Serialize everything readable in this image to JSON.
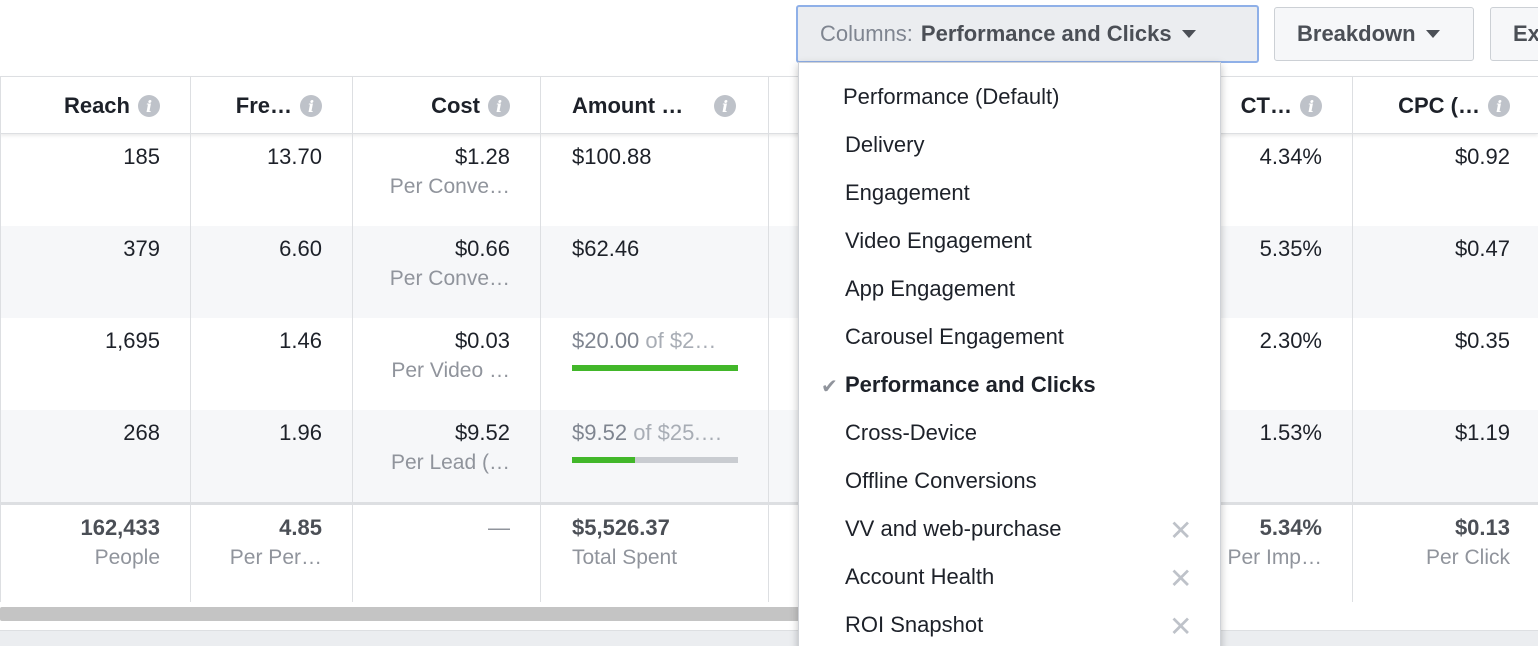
{
  "toolbar": {
    "columns_prefix": "Columns:",
    "columns_value": "Performance and Clicks",
    "breakdown_label": "Breakdown",
    "export_label": "Ex"
  },
  "table": {
    "headers": {
      "reach": "Reach",
      "frequency": "Fre…",
      "cost": "Cost",
      "amount": "Amount …",
      "ctr": "CT…",
      "cpc": "CPC (…"
    },
    "rows": [
      {
        "reach": "185",
        "frequency": "13.70",
        "cost": "$1.28",
        "cost_sub": "Per Conve…",
        "amount": "$100.88",
        "ctr": "4.34%",
        "cpc": "$0.92"
      },
      {
        "reach": "379",
        "frequency": "6.60",
        "cost": "$0.66",
        "cost_sub": "Per Conve…",
        "amount": "$62.46",
        "ctr": "5.35%",
        "cpc": "$0.47"
      },
      {
        "reach": "1,695",
        "frequency": "1.46",
        "cost": "$0.03",
        "cost_sub": "Per Video …",
        "amount_spent": "$20.00",
        "amount_of": "of $2…",
        "budget_progress": 1.0,
        "ctr": "2.30%",
        "cpc": "$0.35"
      },
      {
        "reach": "268",
        "frequency": "1.96",
        "cost": "$9.52",
        "cost_sub": "Per Lead (…",
        "amount_spent": "$9.52",
        "amount_of": "of $25.…",
        "budget_progress": 0.38,
        "ctr": "1.53%",
        "cpc": "$1.19"
      }
    ],
    "totals": {
      "reach": "162,433",
      "reach_sub": "People",
      "frequency": "4.85",
      "frequency_sub": "Per Per…",
      "cost": "—",
      "amount": "$5,526.37",
      "amount_sub": "Total Spent",
      "ctr": "5.34%",
      "ctr_sub": "Per Imp…",
      "cpc": "$0.13",
      "cpc_sub": "Per Click"
    }
  },
  "columns_menu": {
    "items": [
      {
        "label": "Performance (Default)",
        "selected": false,
        "removable": false
      },
      {
        "label": "Delivery",
        "selected": false,
        "removable": false
      },
      {
        "label": "Engagement",
        "selected": false,
        "removable": false
      },
      {
        "label": "Video Engagement",
        "selected": false,
        "removable": false
      },
      {
        "label": "App Engagement",
        "selected": false,
        "removable": false
      },
      {
        "label": "Carousel Engagement",
        "selected": false,
        "removable": false
      },
      {
        "label": "Performance and Clicks",
        "selected": true,
        "removable": false
      },
      {
        "label": "Cross-Device",
        "selected": false,
        "removable": false
      },
      {
        "label": "Offline Conversions",
        "selected": false,
        "removable": false
      },
      {
        "label": "VV and web-purchase",
        "selected": false,
        "removable": true
      },
      {
        "label": "Account Health",
        "selected": false,
        "removable": true
      },
      {
        "label": "ROI Snapshot",
        "selected": false,
        "removable": true
      }
    ]
  },
  "colors": {
    "progress_fill": "#42b72a",
    "progress_track": "#c9ccd1",
    "focus_border": "#8fb0e8"
  }
}
